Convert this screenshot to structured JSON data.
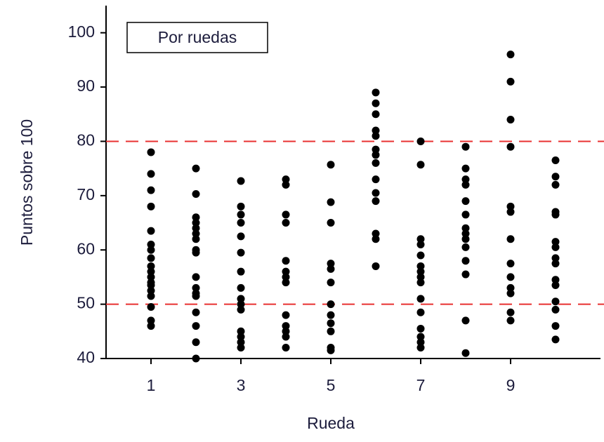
{
  "chart_data": {
    "type": "scatter",
    "annotation": "Por ruedas",
    "x_label": "Rueda",
    "y_label": "Puntos sobre 100",
    "color": "#000000",
    "hlines": [
      80,
      50
    ],
    "hline_color": "#e83030",
    "xlim": [
      0,
      11
    ],
    "ylim": [
      40,
      105
    ],
    "xticks": [
      1,
      3,
      5,
      7,
      9
    ],
    "yticks": [
      40,
      50,
      60,
      70,
      80,
      90,
      100
    ],
    "x": [
      1,
      1,
      1,
      1,
      1,
      1,
      1,
      1,
      1,
      1,
      1,
      1,
      1,
      1,
      1,
      1,
      1,
      1,
      2,
      2,
      2,
      2,
      2,
      2,
      2,
      2,
      2,
      2,
      2,
      2,
      2,
      2,
      2,
      2,
      2,
      3,
      3,
      3,
      3,
      3,
      3,
      3,
      3,
      3,
      3,
      3,
      3,
      3,
      3,
      3,
      4,
      4,
      4,
      4,
      4,
      4,
      4,
      4,
      4,
      4,
      4,
      4,
      4,
      5,
      5,
      5,
      5,
      5,
      5,
      5,
      5,
      5,
      5,
      5,
      5,
      6,
      6,
      6,
      6,
      6,
      6,
      6,
      6,
      6,
      6,
      6,
      6,
      6,
      6,
      7,
      7,
      7,
      7,
      7,
      7,
      7,
      7,
      7,
      7,
      7,
      7,
      7,
      7,
      7,
      8,
      8,
      8,
      8,
      8,
      8,
      8,
      8,
      8,
      8,
      8,
      8,
      8,
      8,
      9,
      9,
      9,
      9,
      9,
      9,
      9,
      9,
      9,
      9,
      9,
      9,
      9,
      10,
      10,
      10,
      10,
      10,
      10,
      10,
      10,
      10,
      10,
      10,
      10,
      10,
      10,
      10
    ],
    "values": [
      78,
      74,
      71,
      68,
      63.5,
      61,
      60,
      58.5,
      57,
      56,
      55,
      54,
      53.5,
      52.5,
      51.5,
      49.5,
      47,
      46,
      75,
      70.3,
      66,
      65,
      64,
      63,
      62,
      60,
      59.5,
      55,
      53,
      52,
      51.5,
      48.5,
      46,
      43,
      40,
      72.7,
      68,
      66.5,
      65,
      62.5,
      59.5,
      56,
      53,
      51,
      50,
      49,
      45,
      44,
      43,
      42,
      73,
      72,
      66.5,
      65,
      58,
      56,
      55,
      54,
      48,
      46,
      45,
      44,
      42,
      75.7,
      68.8,
      65,
      57.5,
      56.5,
      54,
      50,
      48,
      46.5,
      45,
      42,
      41.5,
      89,
      87,
      85,
      82,
      81,
      78.5,
      77.5,
      76,
      73,
      70.5,
      69,
      63,
      62,
      57,
      80,
      75.7,
      62,
      61,
      59,
      57,
      56,
      55,
      54,
      51,
      48.5,
      45.5,
      44,
      43,
      42,
      79,
      75,
      73,
      72,
      69,
      66.5,
      64,
      63,
      62,
      60.5,
      58,
      55.5,
      47,
      41,
      96,
      91,
      84,
      79,
      68,
      67,
      62,
      57.5,
      55,
      53,
      52,
      48.5,
      47,
      76.5,
      73.5,
      72,
      67,
      66.5,
      61.5,
      60.5,
      58.5,
      57.5,
      54.5,
      53.5,
      50.5,
      49,
      46,
      43.5
    ]
  }
}
